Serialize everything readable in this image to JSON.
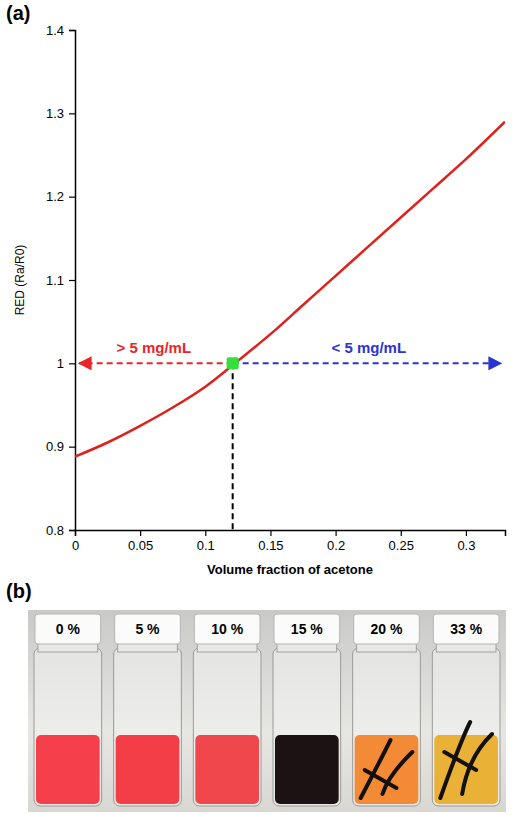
{
  "chart_data": {
    "type": "line",
    "panel_label": "(a)",
    "x_label": "Volume fraction of acetone",
    "y_label": "RED (Ra/R0)",
    "xlim": [
      0,
      0.33
    ],
    "ylim": [
      0.8,
      1.4
    ],
    "xticks": [
      0,
      0.05,
      0.1,
      0.15,
      0.2,
      0.25,
      0.3
    ],
    "yticks": [
      0.8,
      0.9,
      1,
      1.1,
      1.2,
      1.3,
      1.4
    ],
    "x": [
      0,
      0.025,
      0.05,
      0.075,
      0.1,
      0.125,
      0.15,
      0.175,
      0.2,
      0.225,
      0.25,
      0.275,
      0.3,
      0.33
    ],
    "series": [
      {
        "color": "#e0201b",
        "values": [
          0.888,
          0.905,
          0.925,
          0.947,
          0.972,
          1.003,
          1.035,
          1.07,
          1.105,
          1.14,
          1.175,
          1.21,
          1.245,
          1.29
        ]
      }
    ],
    "threshold": {
      "x": 0.121,
      "y": 1,
      "color": "#33e03a"
    },
    "annotations": [
      {
        "text": "> 5 mg/mL",
        "color": "#e8262a"
      },
      {
        "text": "< 5 mg/mL",
        "color": "#2a34d0"
      }
    ]
  },
  "photo": {
    "panel_label": "(b)",
    "vials": [
      {
        "label": "0 %",
        "color": "#f5404c"
      },
      {
        "label": "5 %",
        "color": "#f33e48"
      },
      {
        "label": "10 %",
        "color": "#f0474d"
      },
      {
        "label": "15 %",
        "color": "#1c1214"
      },
      {
        "label": "20 %",
        "color": "#f28a36"
      },
      {
        "label": "33 %",
        "color": "#e9b236"
      }
    ]
  }
}
